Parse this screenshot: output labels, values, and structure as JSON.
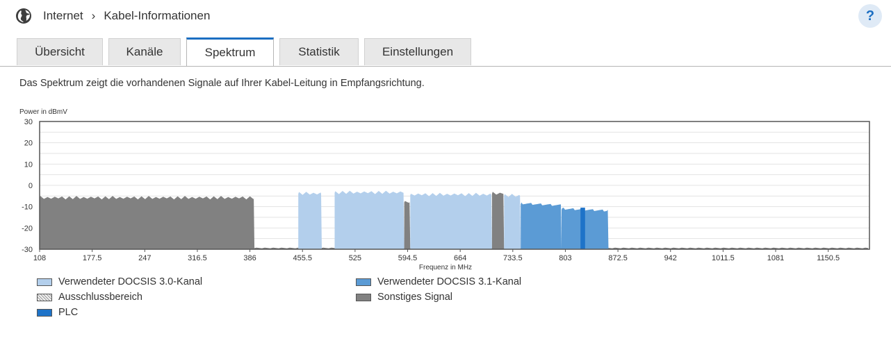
{
  "breadcrumb": {
    "items": [
      "Internet",
      "Kabel-Informationen"
    ]
  },
  "help": {
    "label": "?"
  },
  "tabs": [
    "Übersicht",
    "Kanäle",
    "Spektrum",
    "Statistik",
    "Einstellungen"
  ],
  "active_tab": "Spektrum",
  "intro_text": "Das Spektrum zeigt die vorhandenen Signale auf Ihrer Kabel-Leitung in Empfangsrichtung.",
  "colors": {
    "docsis30": "#b3cfec",
    "docsis31": "#5b9bd5",
    "other": "#818181",
    "plc": "#1e73c8",
    "exclusion": "#dddddd",
    "accent": "#1b6ec2"
  },
  "chart_data": {
    "type": "area",
    "ylabel": "Power in dBmV",
    "xlabel": "Frequenz in MHz",
    "xlim": [
      108,
      1205
    ],
    "ylim": [
      -30,
      30
    ],
    "y_ticks": [
      30,
      20,
      10,
      0,
      -10,
      -20,
      -30
    ],
    "x_ticks": [
      "108",
      "177.5",
      "247",
      "316.5",
      "386",
      "455.5",
      "525",
      "594.5",
      "664",
      "733.5",
      "803",
      "872.5",
      "942",
      "1011.5",
      "1081",
      "1150.5"
    ],
    "grid": true,
    "floor_level": -29.5,
    "bands": [
      {
        "type": "other",
        "from": 108,
        "to": 392,
        "level": -5
      },
      {
        "type": "docsis30",
        "from": 450,
        "to": 481,
        "level": -3
      },
      {
        "type": "docsis30",
        "from": 498,
        "to": 590,
        "level": -2.5
      },
      {
        "type": "other",
        "from": 590,
        "to": 598,
        "level": -7
      },
      {
        "type": "docsis30",
        "from": 598,
        "to": 706,
        "level": -3.5
      },
      {
        "type": "other",
        "from": 706,
        "to": 722,
        "level": -3
      },
      {
        "type": "docsis30",
        "from": 722,
        "to": 744,
        "level": -4
      },
      {
        "type": "docsis31",
        "from": 744,
        "to": 798,
        "level": -8
      },
      {
        "type": "docsis31",
        "from": 798,
        "to": 860,
        "level": -10.5
      },
      {
        "type": "plc",
        "from": 823,
        "to": 829,
        "level": -9.5
      }
    ],
    "legend": [
      {
        "label": "Verwendeter DOCSIS 3.0-Kanal",
        "type": "docsis30"
      },
      {
        "label": "Verwendeter DOCSIS 3.1-Kanal",
        "type": "docsis31"
      },
      {
        "label": "Ausschlussbereich",
        "type": "exclusion"
      },
      {
        "label": "Sonstiges Signal",
        "type": "other"
      },
      {
        "label": "PLC",
        "type": "plc"
      }
    ]
  }
}
